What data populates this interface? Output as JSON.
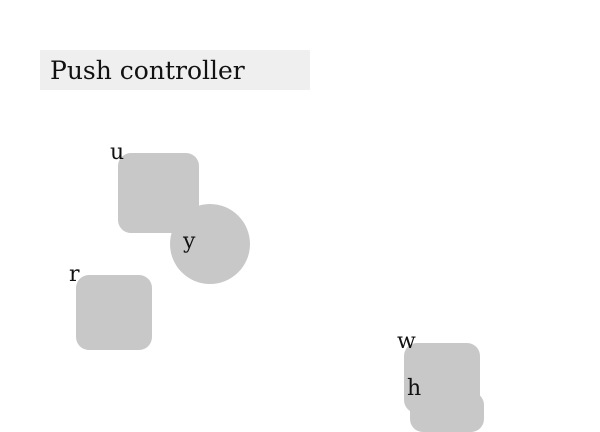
{
  "title": "Push controller",
  "shapes": {
    "u": {
      "label": "u",
      "kind": "square"
    },
    "y": {
      "label": "y",
      "kind": "circle"
    },
    "r": {
      "label": "r",
      "kind": "square"
    },
    "w": {
      "label": "w",
      "kind": "square"
    },
    "h": {
      "label": "h",
      "kind": "square"
    }
  },
  "colors": {
    "shape_fill": "#c8c8c8",
    "title_background": "#efefef",
    "page_background": "#ffffff"
  }
}
